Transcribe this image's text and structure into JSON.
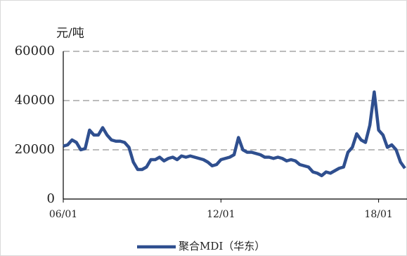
{
  "chart_data": {
    "type": "line",
    "y_label": "元/吨",
    "categories": [
      "06/01",
      null,
      null,
      null,
      null,
      null,
      null,
      null,
      null,
      null,
      null,
      null,
      null,
      null,
      null,
      null,
      null,
      null,
      null,
      null,
      null,
      null,
      null,
      null,
      null,
      null,
      null,
      null,
      null,
      null,
      null,
      null,
      null,
      null,
      null,
      null,
      "12/01",
      null,
      null,
      null,
      null,
      null,
      null,
      null,
      null,
      null,
      null,
      null,
      null,
      null,
      null,
      null,
      null,
      null,
      null,
      null,
      null,
      null,
      null,
      null,
      null,
      null,
      null,
      null,
      null,
      null,
      null,
      null,
      null,
      null,
      null,
      null,
      "18/01",
      null,
      null,
      null,
      null,
      null,
      null
    ],
    "series": [
      {
        "name": "聚合MDI（华东）",
        "color": "#2f4f8f",
        "values": [
          21500,
          22000,
          24000,
          23000,
          20000,
          20500,
          28000,
          26000,
          26000,
          29000,
          26000,
          24000,
          23500,
          23500,
          23000,
          21000,
          15000,
          12000,
          12000,
          13000,
          16000,
          16000,
          17000,
          15500,
          16500,
          17000,
          16000,
          17500,
          17000,
          17500,
          17000,
          16500,
          16000,
          15000,
          13500,
          14000,
          16000,
          16500,
          17000,
          18000,
          25000,
          20000,
          19000,
          19000,
          18500,
          18000,
          17000,
          17000,
          16500,
          17000,
          16500,
          15500,
          16000,
          15500,
          14000,
          13500,
          13000,
          11000,
          10500,
          9500,
          11000,
          10500,
          11500,
          12500,
          13000,
          19000,
          21000,
          26500,
          24000,
          23000,
          30000,
          43500,
          28000,
          26000,
          21000,
          22000,
          20000,
          15000,
          12500
        ]
      }
    ],
    "ylim": [
      0,
      60000
    ],
    "yticks": [
      0,
      20000,
      40000,
      60000
    ],
    "grid": true,
    "legend": "bottom"
  }
}
